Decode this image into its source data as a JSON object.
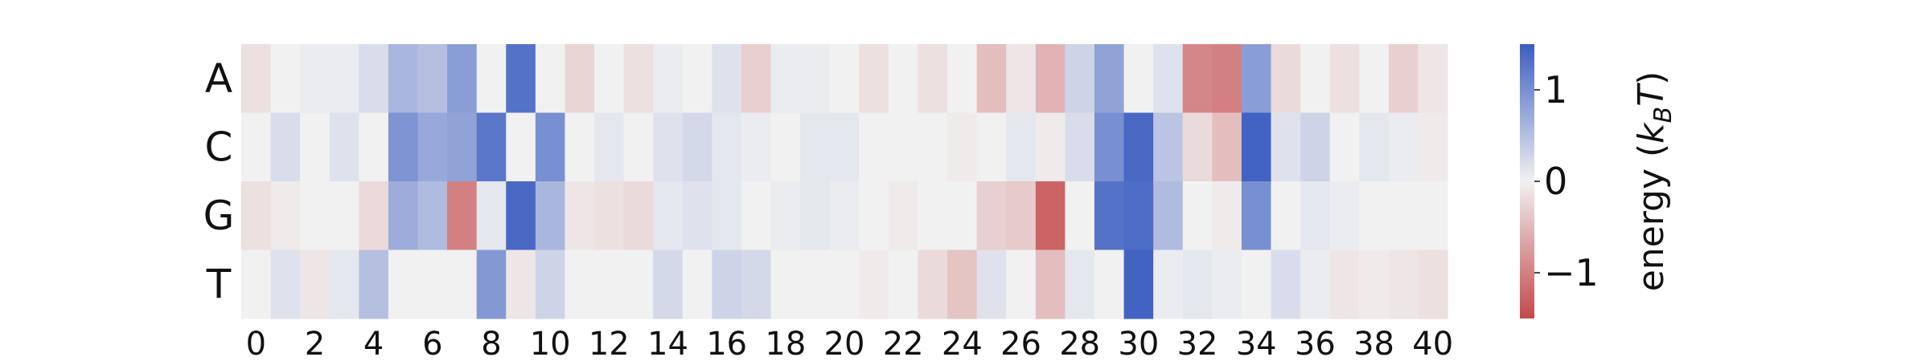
{
  "chart_data": {
    "type": "heatmap",
    "x_categories": [
      "0",
      "1",
      "2",
      "3",
      "4",
      "5",
      "6",
      "7",
      "8",
      "9",
      "10",
      "11",
      "12",
      "13",
      "14",
      "15",
      "16",
      "17",
      "18",
      "19",
      "20",
      "21",
      "22",
      "23",
      "24",
      "25",
      "26",
      "27",
      "28",
      "29",
      "30",
      "31",
      "32",
      "33",
      "34",
      "35",
      "36",
      "37",
      "38",
      "39",
      "40"
    ],
    "x_tick_labels": [
      "0",
      "2",
      "4",
      "6",
      "8",
      "10",
      "12",
      "14",
      "16",
      "18",
      "20",
      "22",
      "24",
      "26",
      "28",
      "30",
      "32",
      "34",
      "36",
      "38",
      "40"
    ],
    "y_categories": [
      "A",
      "C",
      "G",
      "T"
    ],
    "values": [
      [
        -0.15,
        0.0,
        0.05,
        0.05,
        0.2,
        0.6,
        0.5,
        0.85,
        0.0,
        1.3,
        0.0,
        -0.25,
        0.0,
        -0.15,
        0.05,
        0.0,
        0.15,
        -0.3,
        0.05,
        0.05,
        0.0,
        -0.15,
        0.0,
        -0.15,
        0.0,
        -0.45,
        -0.1,
        -0.55,
        0.3,
        0.8,
        0.0,
        0.15,
        -0.95,
        -1.0,
        0.85,
        -0.2,
        0.0,
        -0.15,
        0.0,
        -0.3,
        -0.1
      ],
      [
        0.0,
        0.2,
        0.0,
        0.15,
        0.0,
        0.95,
        0.75,
        0.8,
        1.25,
        0.0,
        1.0,
        0.0,
        0.1,
        0.0,
        0.15,
        0.25,
        0.1,
        0.05,
        0.0,
        0.1,
        0.1,
        0.0,
        0.0,
        0.0,
        -0.05,
        0.0,
        0.1,
        -0.05,
        0.2,
        1.0,
        1.4,
        0.45,
        -0.2,
        -0.45,
        1.45,
        0.15,
        0.3,
        0.0,
        0.1,
        0.05,
        -0.05
      ],
      [
        -0.15,
        -0.05,
        0.0,
        0.0,
        -0.2,
        0.7,
        0.55,
        -1.0,
        0.1,
        1.4,
        0.6,
        -0.1,
        -0.15,
        -0.2,
        0.1,
        0.15,
        0.1,
        0.0,
        0.05,
        0.1,
        0.05,
        0.0,
        -0.05,
        0.0,
        0.0,
        -0.3,
        -0.35,
        -1.25,
        0.0,
        1.3,
        1.35,
        0.55,
        0.0,
        -0.05,
        1.0,
        0.0,
        0.1,
        0.05,
        0.0,
        0.0,
        0.0
      ],
      [
        0.0,
        0.15,
        -0.1,
        0.1,
        0.5,
        0.0,
        0.0,
        0.0,
        0.9,
        -0.1,
        0.3,
        0.0,
        0.0,
        0.0,
        0.25,
        0.0,
        0.3,
        0.25,
        0.0,
        0.0,
        0.0,
        -0.05,
        0.0,
        -0.2,
        -0.4,
        0.15,
        0.0,
        -0.45,
        0.1,
        0.0,
        1.45,
        0.05,
        0.1,
        0.05,
        0.0,
        0.2,
        0.05,
        -0.1,
        -0.05,
        -0.1,
        -0.15
      ]
    ],
    "vmin": -1.5,
    "vmax": 1.5,
    "colormap": "coolwarm_r",
    "colorbar": {
      "label_main": "energy (",
      "label_var": "k",
      "label_sub": "B",
      "label_var2": "T",
      "label_end": ")",
      "ticks": [
        1,
        0,
        -1
      ],
      "tick_labels": [
        "1",
        "0",
        "−1"
      ]
    },
    "colors": {
      "low": "#c4484a",
      "mid": "#f1f1f1",
      "high": "#3c5ec1"
    }
  }
}
